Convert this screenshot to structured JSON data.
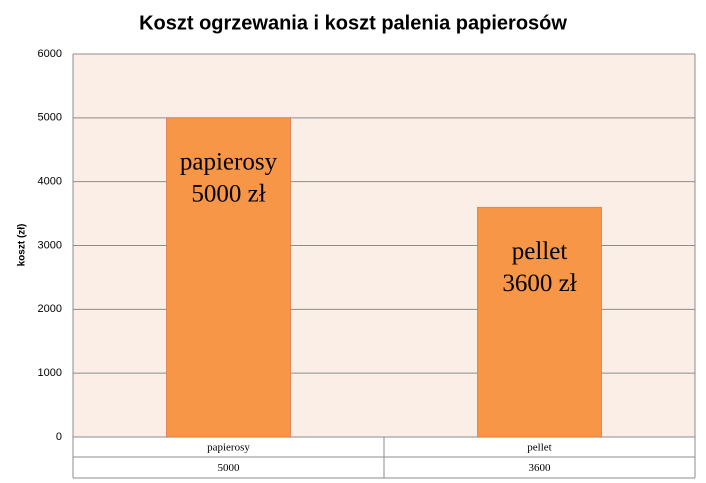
{
  "chart_data": {
    "type": "bar",
    "title": "Koszt ogrzewania i koszt palenia papierosów",
    "y_label": "koszt (zł)",
    "categories": [
      "papierosy",
      "pellet"
    ],
    "values": [
      5000,
      3600
    ],
    "value_labels": [
      "5000 zł",
      "3600 zł"
    ],
    "color": "#f79646",
    "ylim": [
      0,
      6000
    ],
    "yticks": [
      0,
      1000,
      2000,
      3000,
      4000,
      5000,
      6000
    ],
    "grid": true
  }
}
